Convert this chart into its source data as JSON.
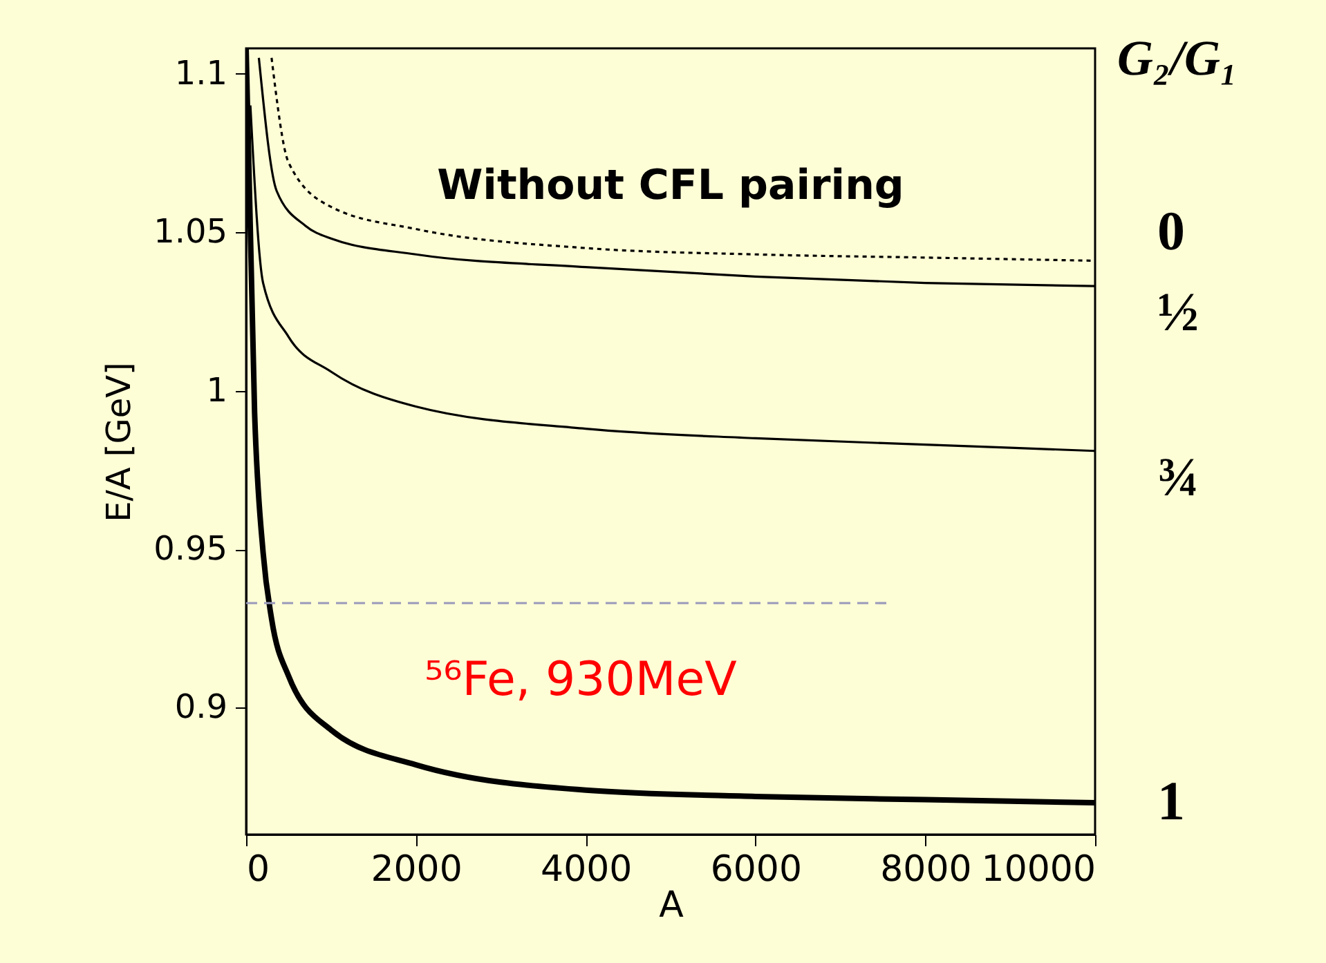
{
  "chart_data": {
    "type": "line",
    "xlabel": "A",
    "ylabel": "E/A [GeV]",
    "legend_title": "G₂/G₁",
    "xlim": [
      0,
      10000
    ],
    "ylim": [
      0.86,
      1.108
    ],
    "xticks": [
      0,
      2000,
      4000,
      6000,
      8000,
      10000
    ],
    "yticks": [
      0.9,
      0.95,
      1,
      1.05,
      1.1
    ],
    "grid": false,
    "legend": false,
    "annotations": [
      "Without CFL pairing",
      "⁵⁶Fe, 930MeV"
    ],
    "series": [
      {
        "name": "0",
        "color": "#000000",
        "line_style": "dotted",
        "x": [
          300,
          500,
          1000,
          2000,
          4000,
          6000,
          8000,
          10000
        ],
        "values": [
          1.105,
          1.072,
          1.058,
          1.051,
          1.045,
          1.043,
          1.042,
          1.041
        ]
      },
      {
        "name": "½",
        "color": "#000000",
        "line_style": "solid",
        "x": [
          150,
          360,
          700,
          1000,
          2000,
          4000,
          6000,
          8000,
          10000
        ],
        "values": [
          1.105,
          1.063,
          1.052,
          1.048,
          1.043,
          1.039,
          1.036,
          1.034,
          1.033
        ]
      },
      {
        "name": "¾",
        "color": "#000000",
        "line_style": "solid",
        "x": [
          50,
          200,
          500,
          1000,
          2000,
          4000,
          6000,
          8000,
          10000
        ],
        "values": [
          1.09,
          1.034,
          1.017,
          1.006,
          0.995,
          0.988,
          0.985,
          0.983,
          0.981
        ]
      },
      {
        "name": "1",
        "color": "#000000",
        "line_style": "solid",
        "x": [
          0,
          100,
          200,
          300,
          500,
          1000,
          2000,
          4000,
          6000,
          8000,
          10000
        ],
        "values": [
          1.108,
          0.993,
          0.949,
          0.928,
          0.91,
          0.893,
          0.882,
          0.874,
          0.872,
          0.871,
          0.87
        ]
      },
      {
        "color": "#9999bb",
        "line_style": "dashed",
        "x": [
          0,
          7600
        ],
        "values": [
          0.933,
          0.933
        ]
      }
    ]
  }
}
